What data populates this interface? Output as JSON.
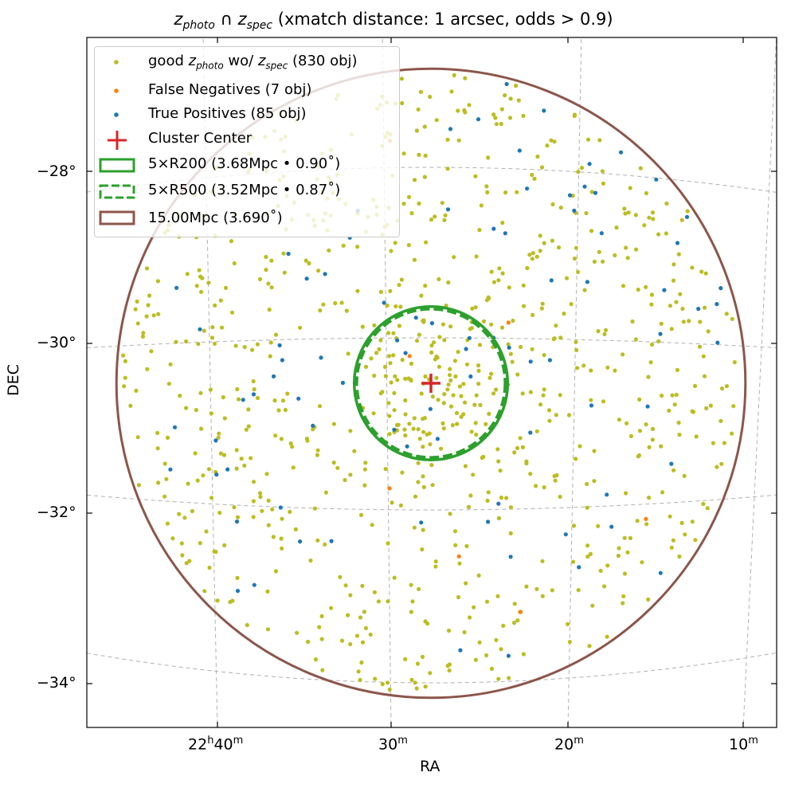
{
  "title": {
    "prefix": "z",
    "sub1": "photo",
    "cap": " ∩ ",
    "z2": "z",
    "sub2": "spec",
    "rest": " (xmatch distance: 1 arcsec, odds > 0.9)"
  },
  "chart_data": {
    "type": "scatter",
    "projection": "sky (RA/DEC) gnomonic-like",
    "xlabel": "RA",
    "ylabel": "DEC",
    "x_ticks": [
      "22h40m",
      "30m",
      "20m",
      "10m"
    ],
    "y_ticks": [
      "−28°",
      "−30°",
      "−32°",
      "−34°"
    ],
    "grid": true,
    "legend_position": "upper-left",
    "cluster_center": {
      "ra_label": "22h28m",
      "dec": -30.5
    },
    "series": [
      {
        "name": "good z_photo wo/ z_spec (830 obj)",
        "color": "#bcbd22",
        "count": 830
      },
      {
        "name": "False Negatives (7 obj)",
        "color": "#ff7f0e",
        "count": 7
      },
      {
        "name": "True Positives (85 obj)",
        "color": "#1f77b4",
        "count": 85
      }
    ],
    "circles": [
      {
        "name": "5×R200 (3.68Mpc • 0.90°)",
        "radius_deg": 0.9,
        "color": "#2ca02c",
        "style": "solid"
      },
      {
        "name": "5×R500 (3.52Mpc • 0.87°)",
        "radius_deg": 0.87,
        "color": "#2ca02c",
        "style": "dashed"
      },
      {
        "name": "15.00Mpc (3.690°)",
        "radius_deg": 3.69,
        "color": "#8c564b",
        "style": "solid"
      }
    ]
  },
  "legend": {
    "good": {
      "a": "good ",
      "z": "z",
      "s": "photo",
      "b": " wo/ ",
      "z2": "z",
      "s2": "spec",
      "c": " (830 obj)"
    },
    "fn": "False Negatives (7 obj)",
    "tp": "True Positives (85 obj)",
    "cc": "Cluster Center",
    "r200": "5×R200 (3.68Mpc • 0.90˚)",
    "r500": "5×R500 (3.52Mpc • 0.87˚)",
    "r15": "15.00Mpc (3.690˚)"
  },
  "ticks": {
    "x": [
      {
        "main": "22",
        "sup1": "h",
        "mid": "40",
        "sup2": "m"
      },
      {
        "main": "30",
        "sup2": "m"
      },
      {
        "main": "20",
        "sup2": "m"
      },
      {
        "main": "10",
        "sup2": "m"
      }
    ],
    "y": [
      "−28°",
      "−30°",
      "−32°",
      "−34°"
    ]
  },
  "colors": {
    "good": "#bcbd22",
    "fn": "#ff7f0e",
    "tp": "#1f77b4",
    "center": "#d62728",
    "green": "#2ca02c",
    "brown": "#8c564b",
    "grid": "#b0b0b0"
  }
}
